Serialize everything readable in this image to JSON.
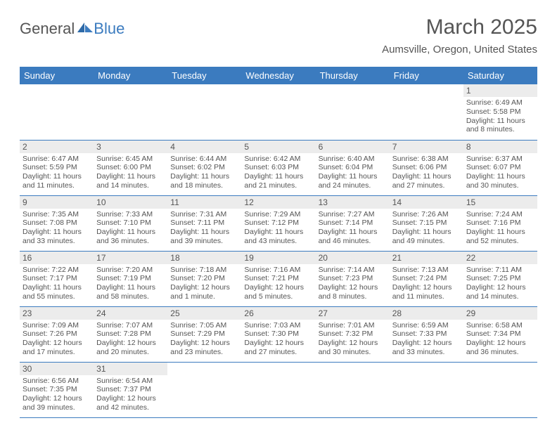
{
  "logo": {
    "text1": "General",
    "text2": "Blue"
  },
  "title": "March 2025",
  "location": "Aumsville, Oregon, United States",
  "colors": {
    "header_bg": "#3b7bbf",
    "header_text": "#ffffff",
    "daynum_bg": "#ececec",
    "border": "#3b7bbf",
    "text": "#555555"
  },
  "daysOfWeek": [
    "Sunday",
    "Monday",
    "Tuesday",
    "Wednesday",
    "Thursday",
    "Friday",
    "Saturday"
  ],
  "weeks": [
    [
      null,
      null,
      null,
      null,
      null,
      null,
      {
        "n": "1",
        "sr": "Sunrise: 6:49 AM",
        "ss": "Sunset: 5:58 PM",
        "dl": "Daylight: 11 hours and 8 minutes."
      }
    ],
    [
      {
        "n": "2",
        "sr": "Sunrise: 6:47 AM",
        "ss": "Sunset: 5:59 PM",
        "dl": "Daylight: 11 hours and 11 minutes."
      },
      {
        "n": "3",
        "sr": "Sunrise: 6:45 AM",
        "ss": "Sunset: 6:00 PM",
        "dl": "Daylight: 11 hours and 14 minutes."
      },
      {
        "n": "4",
        "sr": "Sunrise: 6:44 AM",
        "ss": "Sunset: 6:02 PM",
        "dl": "Daylight: 11 hours and 18 minutes."
      },
      {
        "n": "5",
        "sr": "Sunrise: 6:42 AM",
        "ss": "Sunset: 6:03 PM",
        "dl": "Daylight: 11 hours and 21 minutes."
      },
      {
        "n": "6",
        "sr": "Sunrise: 6:40 AM",
        "ss": "Sunset: 6:04 PM",
        "dl": "Daylight: 11 hours and 24 minutes."
      },
      {
        "n": "7",
        "sr": "Sunrise: 6:38 AM",
        "ss": "Sunset: 6:06 PM",
        "dl": "Daylight: 11 hours and 27 minutes."
      },
      {
        "n": "8",
        "sr": "Sunrise: 6:37 AM",
        "ss": "Sunset: 6:07 PM",
        "dl": "Daylight: 11 hours and 30 minutes."
      }
    ],
    [
      {
        "n": "9",
        "sr": "Sunrise: 7:35 AM",
        "ss": "Sunset: 7:08 PM",
        "dl": "Daylight: 11 hours and 33 minutes."
      },
      {
        "n": "10",
        "sr": "Sunrise: 7:33 AM",
        "ss": "Sunset: 7:10 PM",
        "dl": "Daylight: 11 hours and 36 minutes."
      },
      {
        "n": "11",
        "sr": "Sunrise: 7:31 AM",
        "ss": "Sunset: 7:11 PM",
        "dl": "Daylight: 11 hours and 39 minutes."
      },
      {
        "n": "12",
        "sr": "Sunrise: 7:29 AM",
        "ss": "Sunset: 7:12 PM",
        "dl": "Daylight: 11 hours and 43 minutes."
      },
      {
        "n": "13",
        "sr": "Sunrise: 7:27 AM",
        "ss": "Sunset: 7:14 PM",
        "dl": "Daylight: 11 hours and 46 minutes."
      },
      {
        "n": "14",
        "sr": "Sunrise: 7:26 AM",
        "ss": "Sunset: 7:15 PM",
        "dl": "Daylight: 11 hours and 49 minutes."
      },
      {
        "n": "15",
        "sr": "Sunrise: 7:24 AM",
        "ss": "Sunset: 7:16 PM",
        "dl": "Daylight: 11 hours and 52 minutes."
      }
    ],
    [
      {
        "n": "16",
        "sr": "Sunrise: 7:22 AM",
        "ss": "Sunset: 7:17 PM",
        "dl": "Daylight: 11 hours and 55 minutes."
      },
      {
        "n": "17",
        "sr": "Sunrise: 7:20 AM",
        "ss": "Sunset: 7:19 PM",
        "dl": "Daylight: 11 hours and 58 minutes."
      },
      {
        "n": "18",
        "sr": "Sunrise: 7:18 AM",
        "ss": "Sunset: 7:20 PM",
        "dl": "Daylight: 12 hours and 1 minute."
      },
      {
        "n": "19",
        "sr": "Sunrise: 7:16 AM",
        "ss": "Sunset: 7:21 PM",
        "dl": "Daylight: 12 hours and 5 minutes."
      },
      {
        "n": "20",
        "sr": "Sunrise: 7:14 AM",
        "ss": "Sunset: 7:23 PM",
        "dl": "Daylight: 12 hours and 8 minutes."
      },
      {
        "n": "21",
        "sr": "Sunrise: 7:13 AM",
        "ss": "Sunset: 7:24 PM",
        "dl": "Daylight: 12 hours and 11 minutes."
      },
      {
        "n": "22",
        "sr": "Sunrise: 7:11 AM",
        "ss": "Sunset: 7:25 PM",
        "dl": "Daylight: 12 hours and 14 minutes."
      }
    ],
    [
      {
        "n": "23",
        "sr": "Sunrise: 7:09 AM",
        "ss": "Sunset: 7:26 PM",
        "dl": "Daylight: 12 hours and 17 minutes."
      },
      {
        "n": "24",
        "sr": "Sunrise: 7:07 AM",
        "ss": "Sunset: 7:28 PM",
        "dl": "Daylight: 12 hours and 20 minutes."
      },
      {
        "n": "25",
        "sr": "Sunrise: 7:05 AM",
        "ss": "Sunset: 7:29 PM",
        "dl": "Daylight: 12 hours and 23 minutes."
      },
      {
        "n": "26",
        "sr": "Sunrise: 7:03 AM",
        "ss": "Sunset: 7:30 PM",
        "dl": "Daylight: 12 hours and 27 minutes."
      },
      {
        "n": "27",
        "sr": "Sunrise: 7:01 AM",
        "ss": "Sunset: 7:32 PM",
        "dl": "Daylight: 12 hours and 30 minutes."
      },
      {
        "n": "28",
        "sr": "Sunrise: 6:59 AM",
        "ss": "Sunset: 7:33 PM",
        "dl": "Daylight: 12 hours and 33 minutes."
      },
      {
        "n": "29",
        "sr": "Sunrise: 6:58 AM",
        "ss": "Sunset: 7:34 PM",
        "dl": "Daylight: 12 hours and 36 minutes."
      }
    ],
    [
      {
        "n": "30",
        "sr": "Sunrise: 6:56 AM",
        "ss": "Sunset: 7:35 PM",
        "dl": "Daylight: 12 hours and 39 minutes."
      },
      {
        "n": "31",
        "sr": "Sunrise: 6:54 AM",
        "ss": "Sunset: 7:37 PM",
        "dl": "Daylight: 12 hours and 42 minutes."
      },
      null,
      null,
      null,
      null,
      null
    ]
  ]
}
